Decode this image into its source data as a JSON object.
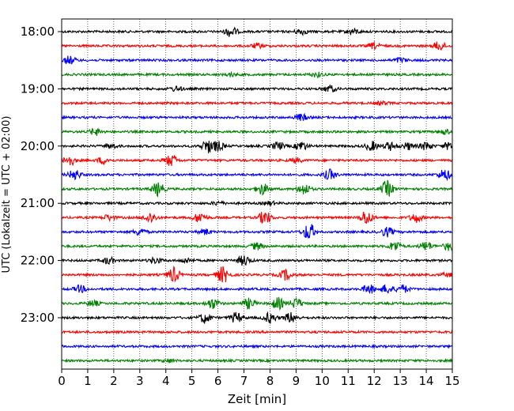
{
  "chart_data": {
    "type": "line",
    "title": "",
    "xlabel": "Zeit  [min]",
    "ylabel": "UTC (Lokalzeit = UTC + 02:00)",
    "xlim": [
      0,
      15
    ],
    "x_ticks": [
      "0",
      "1",
      "2",
      "3",
      "4",
      "5",
      "6",
      "7",
      "8",
      "9",
      "10",
      "11",
      "12",
      "13",
      "14",
      "15"
    ],
    "y_ticks": [
      "18:00",
      "19:00",
      "20:00",
      "21:00",
      "22:00",
      "23:00"
    ],
    "vertical_grid": true,
    "colors": {
      "black": "#000000",
      "red": "#ff0000",
      "blue": "#0000ff",
      "green": "#008000"
    },
    "traces": [
      {
        "start": "18:00",
        "color": "black",
        "bursts": [
          [
            6.5,
            0.9
          ],
          [
            9.2,
            0.5
          ],
          [
            11.2,
            0.5
          ]
        ]
      },
      {
        "start": "18:15",
        "color": "red",
        "bursts": [
          [
            14.5,
            0.8
          ],
          [
            12.0,
            0.5
          ],
          [
            7.5,
            0.4
          ]
        ]
      },
      {
        "start": "18:30",
        "color": "blue",
        "bursts": [
          [
            0.3,
            0.7
          ],
          [
            13.0,
            0.4
          ]
        ]
      },
      {
        "start": "18:45",
        "color": "green",
        "bursts": [
          [
            9.8,
            0.4
          ],
          [
            6.5,
            0.3
          ]
        ]
      },
      {
        "start": "19:00",
        "color": "black",
        "bursts": [
          [
            10.3,
            0.6
          ],
          [
            4.4,
            0.4
          ]
        ]
      },
      {
        "start": "19:15",
        "color": "red",
        "bursts": [
          [
            12.3,
            0.3
          ]
        ]
      },
      {
        "start": "19:30",
        "color": "blue",
        "bursts": [
          [
            9.2,
            0.6
          ]
        ]
      },
      {
        "start": "19:45",
        "color": "green",
        "bursts": [
          [
            1.3,
            0.6
          ],
          [
            14.7,
            0.4
          ]
        ]
      },
      {
        "start": "20:00",
        "color": "black",
        "bursts": [
          [
            1.9,
            0.4
          ],
          [
            5.6,
            1.1
          ],
          [
            6.0,
            0.8
          ],
          [
            8.3,
            0.7
          ],
          [
            9.2,
            0.8
          ],
          [
            11.9,
            0.8
          ],
          [
            12.6,
            0.7
          ],
          [
            13.3,
            0.6
          ],
          [
            14.0,
            0.7
          ],
          [
            14.9,
            0.7
          ]
        ]
      },
      {
        "start": "20:15",
        "color": "red",
        "bursts": [
          [
            0.3,
            0.9
          ],
          [
            1.6,
            0.6
          ],
          [
            4.2,
            1.0
          ],
          [
            9.0,
            0.4
          ]
        ]
      },
      {
        "start": "20:30",
        "color": "blue",
        "bursts": [
          [
            0.5,
            0.9
          ],
          [
            10.3,
            0.9
          ],
          [
            14.7,
            1.0
          ]
        ]
      },
      {
        "start": "20:45",
        "color": "green",
        "bursts": [
          [
            3.7,
            1.2
          ],
          [
            7.7,
            1.0
          ],
          [
            9.3,
            1.0
          ],
          [
            12.5,
            1.4
          ]
        ]
      },
      {
        "start": "21:00",
        "color": "black",
        "bursts": [
          [
            6.0,
            0.3
          ],
          [
            8.0,
            0.3
          ]
        ]
      },
      {
        "start": "21:15",
        "color": "red",
        "bursts": [
          [
            1.8,
            0.5
          ],
          [
            3.4,
            0.9
          ],
          [
            5.3,
            0.9
          ],
          [
            7.8,
            1.2
          ],
          [
            11.7,
            1.3
          ],
          [
            13.6,
            0.8
          ]
        ]
      },
      {
        "start": "21:30",
        "color": "blue",
        "bursts": [
          [
            3.0,
            0.6
          ],
          [
            5.5,
            0.5
          ],
          [
            9.5,
            1.5
          ],
          [
            12.5,
            0.8
          ]
        ]
      },
      {
        "start": "21:45",
        "color": "green",
        "bursts": [
          [
            7.5,
            0.6
          ],
          [
            12.8,
            0.9
          ],
          [
            14.0,
            0.8
          ],
          [
            14.9,
            0.8
          ]
        ]
      },
      {
        "start": "22:00",
        "color": "black",
        "bursts": [
          [
            1.8,
            0.6
          ],
          [
            3.6,
            0.5
          ],
          [
            7.0,
            0.9
          ],
          [
            4.8,
            0.4
          ]
        ]
      },
      {
        "start": "22:15",
        "color": "red",
        "bursts": [
          [
            4.3,
            1.3
          ],
          [
            6.2,
            1.4
          ],
          [
            8.6,
            0.9
          ],
          [
            14.8,
            0.3
          ]
        ]
      },
      {
        "start": "22:30",
        "color": "blue",
        "bursts": [
          [
            0.7,
            0.6
          ],
          [
            11.8,
            0.8
          ],
          [
            12.5,
            0.8
          ],
          [
            13.1,
            0.7
          ]
        ]
      },
      {
        "start": "22:45",
        "color": "green",
        "bursts": [
          [
            1.2,
            0.5
          ],
          [
            5.8,
            0.9
          ],
          [
            7.2,
            0.9
          ],
          [
            8.3,
            1.0
          ],
          [
            9.0,
            0.9
          ]
        ]
      },
      {
        "start": "23:00",
        "color": "black",
        "bursts": [
          [
            5.5,
            0.9
          ],
          [
            6.7,
            0.9
          ],
          [
            8.0,
            0.9
          ],
          [
            8.8,
            0.9
          ]
        ]
      },
      {
        "start": "23:15",
        "color": "red",
        "bursts": []
      },
      {
        "start": "23:30",
        "color": "blue",
        "bursts": []
      },
      {
        "start": "23:45",
        "color": "green",
        "bursts": [
          [
            4.1,
            0.3
          ]
        ]
      }
    ]
  }
}
